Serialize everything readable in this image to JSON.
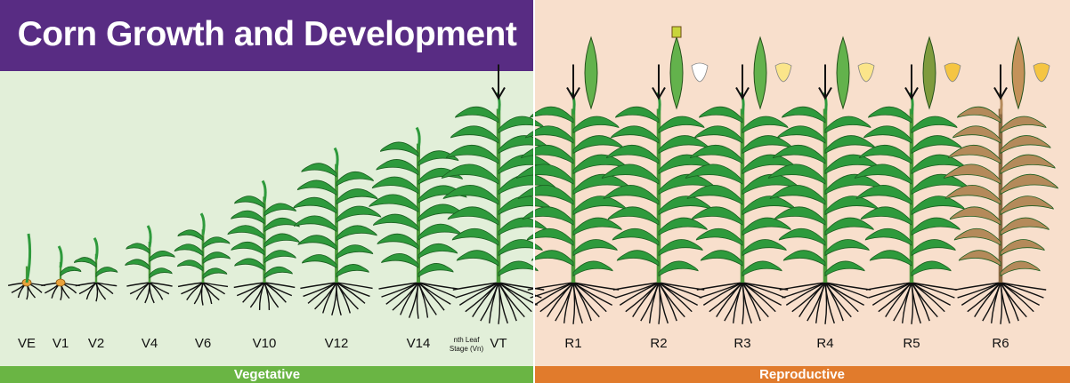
{
  "title": "Corn Growth and Development",
  "phases": {
    "vegetative": "Vegetative",
    "reproductive": "Reproductive"
  },
  "colors": {
    "title_band": "#582c83",
    "vegetative_bg": "#e2efd9",
    "reproductive_bg": "#f8dfcc",
    "vegetative_bar": "#6ab544",
    "reproductive_bar": "#e17b2c",
    "leaf_green": "#2e9a3c",
    "root_black": "#111111"
  },
  "stages": [
    {
      "label": "VE",
      "phase": "vegetative",
      "leaves": 0,
      "height": 0.08
    },
    {
      "label": "V1",
      "phase": "vegetative",
      "leaves": 1,
      "height": 0.1
    },
    {
      "label": "V2",
      "phase": "vegetative",
      "leaves": 2,
      "height": 0.14
    },
    {
      "label": "V4",
      "phase": "vegetative",
      "leaves": 4,
      "height": 0.2
    },
    {
      "label": "V6",
      "phase": "vegetative",
      "leaves": 6,
      "height": 0.26
    },
    {
      "label": "V10",
      "phase": "vegetative",
      "leaves": 10,
      "height": 0.42
    },
    {
      "label": "V12",
      "phase": "vegetative",
      "leaves": 12,
      "height": 0.58
    },
    {
      "label": "V14",
      "phase": "vegetative",
      "leaves": 14,
      "height": 0.68
    },
    {
      "label": "nth Leaf\nStage (Vn)",
      "phase": "vegetative",
      "leaves": 0,
      "height": 0,
      "small": true
    },
    {
      "label": "VT",
      "phase": "vegetative",
      "leaves": 16,
      "height": 0.85,
      "tassel": true
    },
    {
      "label": "R1",
      "phase": "reproductive",
      "leaves": 16,
      "height": 0.85,
      "tassel": true,
      "ear_stage": 1,
      "kernel": false
    },
    {
      "label": "R2",
      "phase": "reproductive",
      "leaves": 16,
      "height": 0.85,
      "tassel": true,
      "ear_stage": 2,
      "kernel": true
    },
    {
      "label": "R3",
      "phase": "reproductive",
      "leaves": 16,
      "height": 0.85,
      "tassel": true,
      "ear_stage": 3,
      "kernel": true
    },
    {
      "label": "R4",
      "phase": "reproductive",
      "leaves": 16,
      "height": 0.85,
      "tassel": true,
      "ear_stage": 4,
      "kernel": true
    },
    {
      "label": "R5",
      "phase": "reproductive",
      "leaves": 16,
      "height": 0.85,
      "tassel": true,
      "ear_stage": 5,
      "kernel": true
    },
    {
      "label": "R6",
      "phase": "reproductive",
      "leaves": 16,
      "height": 0.85,
      "tassel": true,
      "ear_stage": 6,
      "kernel": true,
      "senesced": true
    }
  ]
}
